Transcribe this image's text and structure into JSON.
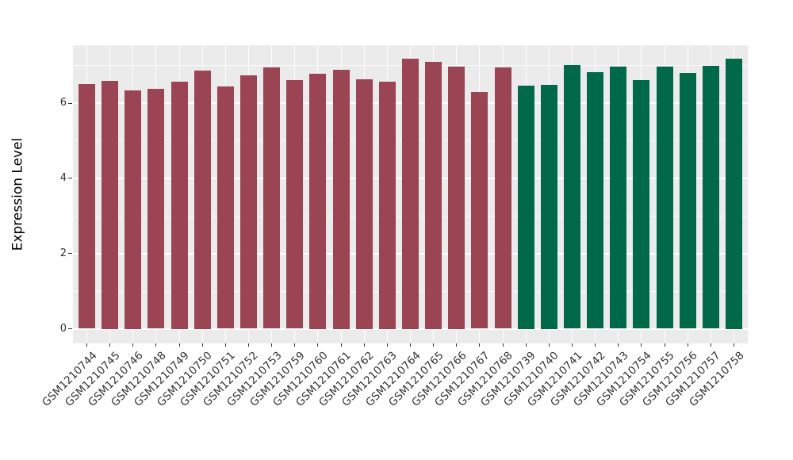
{
  "chart_data": {
    "type": "bar",
    "title": "",
    "xlabel": "",
    "ylabel": "Expression Level",
    "ylim": [
      -0.39,
      7.54
    ],
    "yticks": [
      0,
      2,
      4,
      6
    ],
    "minor_gridlines": [
      1,
      3,
      5,
      7
    ],
    "grid": true,
    "legend_position": "none",
    "panel_background": "#EBEBEB",
    "gridline_color": "#FFFFFF",
    "axis_text_color": "#333333",
    "series": [
      {
        "color": "#9B4453",
        "bars": [
          {
            "label": "GSM1210744",
            "value": 6.51
          },
          {
            "label": "GSM1210745",
            "value": 6.6
          },
          {
            "label": "GSM1210746",
            "value": 6.34
          },
          {
            "label": "GSM1210748",
            "value": 6.39
          },
          {
            "label": "GSM1210749",
            "value": 6.58
          },
          {
            "label": "GSM1210750",
            "value": 6.86
          },
          {
            "label": "GSM1210751",
            "value": 6.45
          },
          {
            "label": "GSM1210752",
            "value": 6.73
          },
          {
            "label": "GSM1210753",
            "value": 6.94
          },
          {
            "label": "GSM1210759",
            "value": 6.62
          },
          {
            "label": "GSM1210760",
            "value": 6.78
          },
          {
            "label": "GSM1210761",
            "value": 6.89
          },
          {
            "label": "GSM1210762",
            "value": 6.63
          },
          {
            "label": "GSM1210763",
            "value": 6.58
          },
          {
            "label": "GSM1210764",
            "value": 7.19
          },
          {
            "label": "GSM1210765",
            "value": 7.1
          },
          {
            "label": "GSM1210766",
            "value": 6.98
          },
          {
            "label": "GSM1210767",
            "value": 6.3
          },
          {
            "label": "GSM1210768",
            "value": 6.94
          }
        ]
      },
      {
        "color": "#006948",
        "bars": [
          {
            "label": "GSM1210739",
            "value": 6.46
          },
          {
            "label": "GSM1210740",
            "value": 6.49
          },
          {
            "label": "GSM1210741",
            "value": 7.02
          },
          {
            "label": "GSM1210742",
            "value": 6.82
          },
          {
            "label": "GSM1210743",
            "value": 6.97
          },
          {
            "label": "GSM1210754",
            "value": 6.62
          },
          {
            "label": "GSM1210755",
            "value": 6.97
          },
          {
            "label": "GSM1210756",
            "value": 6.8
          },
          {
            "label": "GSM1210757",
            "value": 7.0
          },
          {
            "label": "GSM1210758",
            "value": 7.18
          }
        ]
      }
    ]
  }
}
